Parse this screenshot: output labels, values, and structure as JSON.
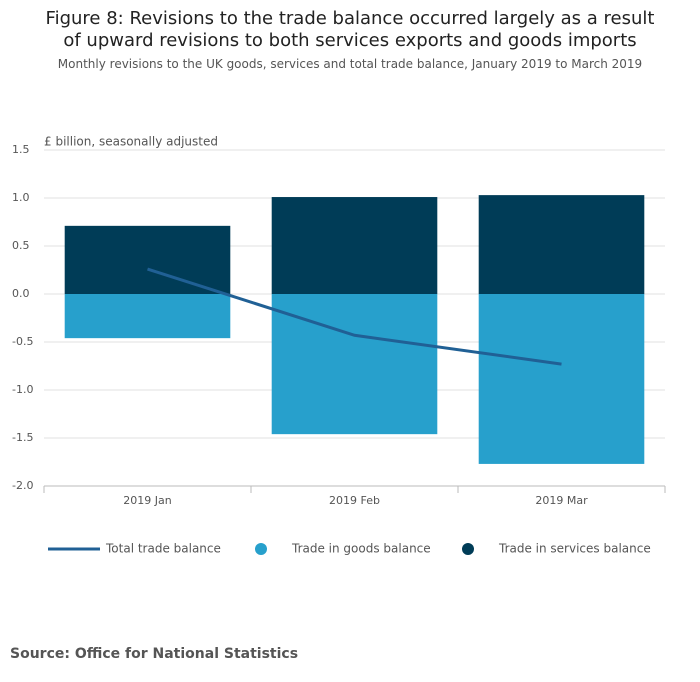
{
  "chart_data": {
    "type": "bar",
    "title": "Figure 8: Revisions to the trade balance occurred largely as a result of upward revisions to both services exports and goods imports",
    "subtitle": "Monthly revisions to the UK goods, services and total trade balance, January 2019 to March 2019",
    "y_label": "£ billion, seasonally adjusted",
    "categories": [
      "2019 Jan",
      "2019 Feb",
      "2019 Mar"
    ],
    "series": [
      {
        "name": "Total trade balance",
        "type": "line",
        "color": "#206095",
        "values": [
          0.26,
          -0.43,
          -0.73
        ]
      },
      {
        "name": "Trade in goods balance",
        "type": "bar",
        "color": "#27a0cc",
        "values": [
          -0.46,
          -1.46,
          -1.77
        ]
      },
      {
        "name": "Trade in services balance",
        "type": "bar",
        "color": "#003c57",
        "values": [
          0.71,
          1.01,
          1.03
        ]
      }
    ],
    "ylim": [
      -2.0,
      1.5
    ],
    "yticks": [
      1.5,
      {
        "value": 1.0,
        "label": "1.0"
      },
      0.5,
      {
        "value": 0.0,
        "label": "0.0"
      },
      -0.5,
      {
        "value": -1.0,
        "label": "-1.0"
      },
      -1.5,
      {
        "value": -2.0,
        "label": "-2.0"
      }
    ],
    "grid": true,
    "source": "Source: Office for National Statistics"
  }
}
